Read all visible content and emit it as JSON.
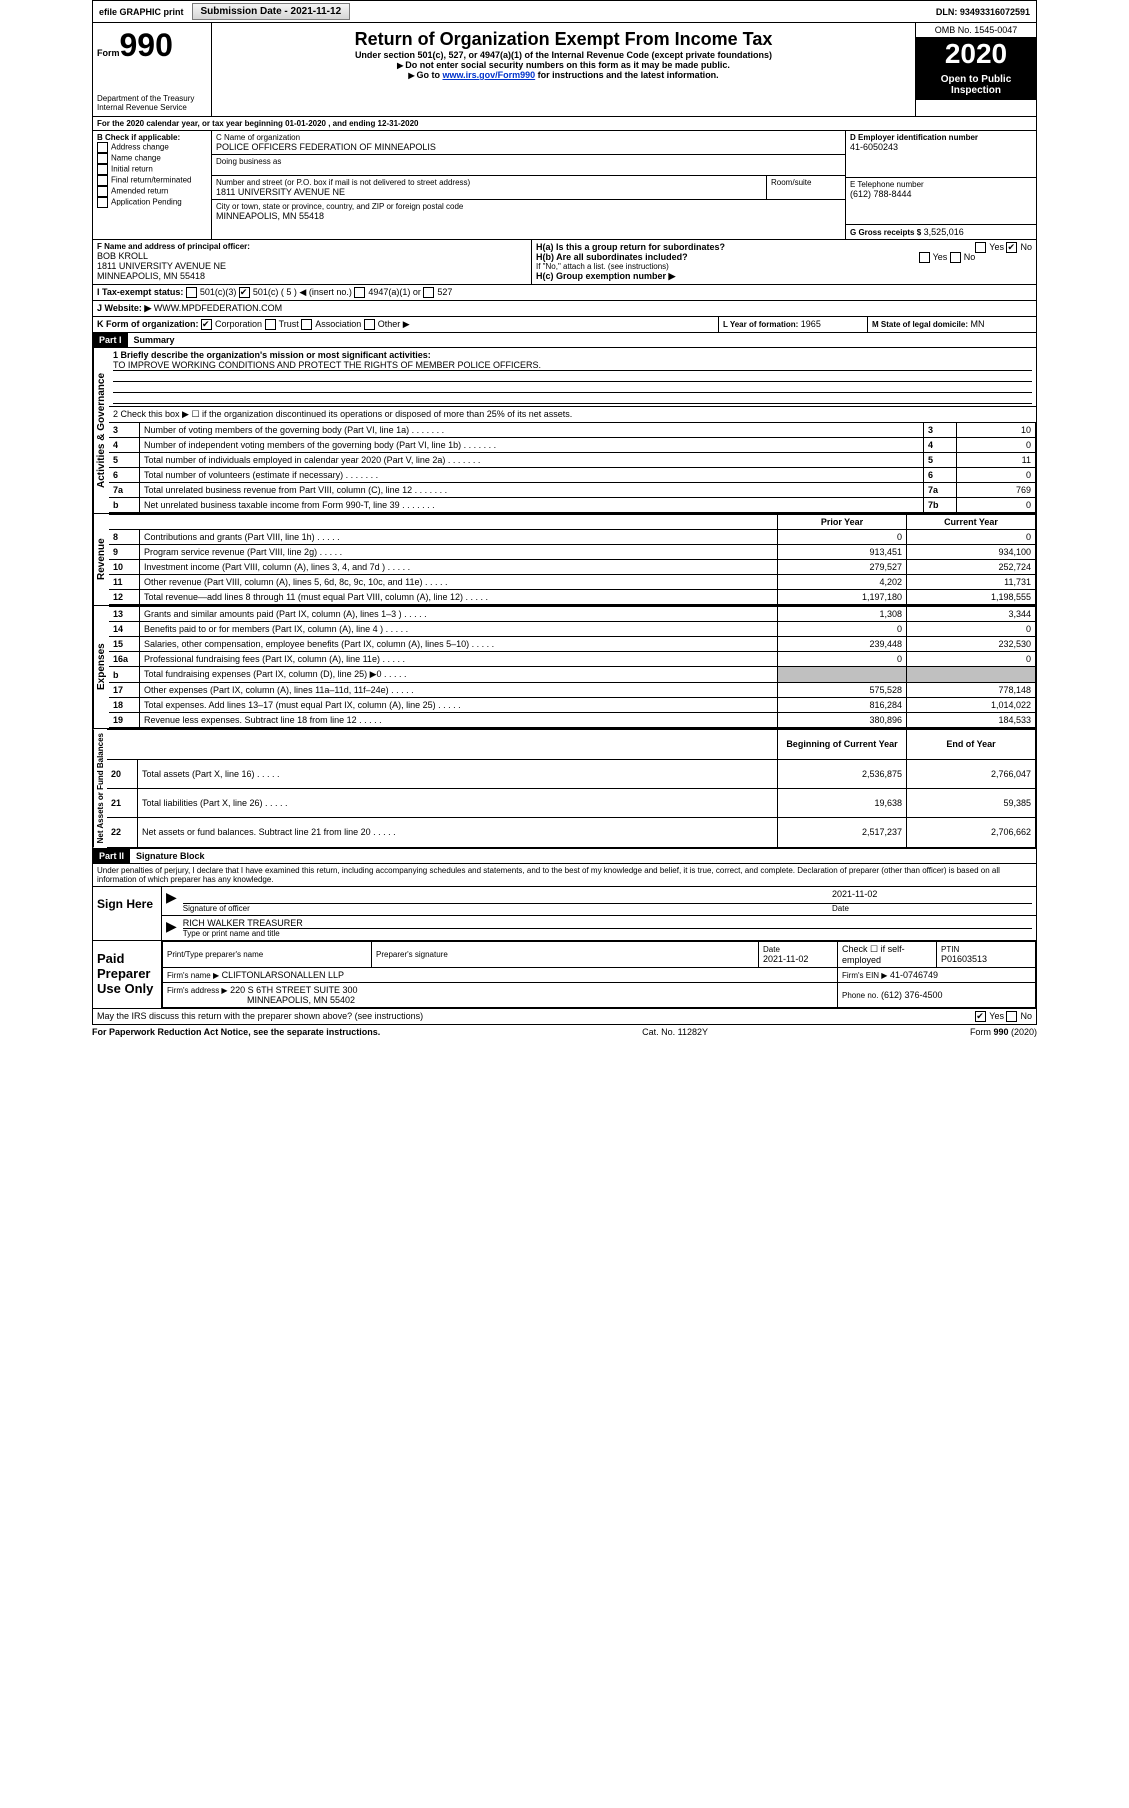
{
  "topbar": {
    "efile": "efile GRAPHIC print",
    "submission_label": "Submission Date - 2021-11-12",
    "dln": "DLN: 93493316072591"
  },
  "header": {
    "form_word": "Form",
    "form_no": "990",
    "dept1": "Department of the Treasury",
    "dept2": "Internal Revenue Service",
    "title": "Return of Organization Exempt From Income Tax",
    "sub1": "Under section 501(c), 527, or 4947(a)(1) of the Internal Revenue Code (except private foundations)",
    "sub2": "Do not enter social security numbers on this form as it may be made public.",
    "sub3_prefix": "Go to ",
    "sub3_link": "www.irs.gov/Form990",
    "sub3_suffix": " for instructions and the latest information.",
    "omb": "OMB No. 1545-0047",
    "year": "2020",
    "open": "Open to Public Inspection"
  },
  "line_a": "For the 2020 calendar year, or tax year beginning 01-01-2020    , and ending 12-31-2020",
  "box_b": {
    "title": "B Check if applicable:",
    "opts": [
      "Address change",
      "Name change",
      "Initial return",
      "Final return/terminated",
      "Amended return",
      "Application Pending"
    ]
  },
  "box_c": {
    "label_name": "C Name of organization",
    "name": "POLICE OFFICERS FEDERATION OF MINNEAPOLIS",
    "dba_label": "Doing business as",
    "addr_label": "Number and street (or P.O. box if mail is not delivered to street address)",
    "room_label": "Room/suite",
    "addr": "1811 UNIVERSITY AVENUE NE",
    "city_label": "City or town, state or province, country, and ZIP or foreign postal code",
    "city": "MINNEAPOLIS, MN  55418"
  },
  "box_d": {
    "label": "D Employer identification number",
    "val": "41-6050243"
  },
  "box_e": {
    "label": "E Telephone number",
    "val": "(612) 788-8444"
  },
  "box_g": {
    "label": "G Gross receipts $",
    "val": "3,525,016"
  },
  "box_f": {
    "label": "F  Name and address of principal officer:",
    "name": "BOB KROLL",
    "addr1": "1811 UNIVERSITY AVENUE NE",
    "addr2": "MINNEAPOLIS, MN  55418"
  },
  "box_h": {
    "ha": "H(a)  Is this a group return for subordinates?",
    "hb": "H(b)  Are all subordinates included?",
    "hnote": "If \"No,\" attach a list. (see instructions)",
    "hc": "H(c)  Group exemption number ▶",
    "yes": "Yes",
    "no": "No"
  },
  "box_i": {
    "label": "I   Tax-exempt status:",
    "o1": "501(c)(3)",
    "o2": "501(c) ( 5 ) ◀ (insert no.)",
    "o3": "4947(a)(1) or",
    "o4": "527"
  },
  "box_j": {
    "label": "J    Website: ▶",
    "val": "WWW.MPDFEDERATION.COM"
  },
  "box_k": {
    "label": "K Form of organization:",
    "o1": "Corporation",
    "o2": "Trust",
    "o3": "Association",
    "o4": "Other ▶"
  },
  "box_l": {
    "label": "L Year of formation:",
    "val": "1965"
  },
  "box_m": {
    "label": "M State of legal domicile:",
    "val": "MN"
  },
  "part1": {
    "hdr": "Part I",
    "title": "Summary"
  },
  "summary": {
    "l1_label": "1   Briefly describe the organization's mission or most significant activities:",
    "l1_val": "TO IMPROVE WORKING CONDITIONS AND PROTECT THE RIGHTS OF MEMBER POLICE OFFICERS.",
    "l2": "2    Check this box ▶ ☐  if the organization discontinued its operations or disposed of more than 25% of its net assets.",
    "rows_gov": [
      {
        "n": "3",
        "t": "Number of voting members of the governing body (Part VI, line 1a)",
        "b": "3",
        "v": "10"
      },
      {
        "n": "4",
        "t": "Number of independent voting members of the governing body (Part VI, line 1b)",
        "b": "4",
        "v": "0"
      },
      {
        "n": "5",
        "t": "Total number of individuals employed in calendar year 2020 (Part V, line 2a)",
        "b": "5",
        "v": "11"
      },
      {
        "n": "6",
        "t": "Total number of volunteers (estimate if necessary)",
        "b": "6",
        "v": "0"
      },
      {
        "n": "7a",
        "t": "Total unrelated business revenue from Part VIII, column (C), line 12",
        "b": "7a",
        "v": "769"
      },
      {
        "n": "b",
        "t": "Net unrelated business taxable income from Form 990-T, line 39",
        "b": "7b",
        "v": "0"
      }
    ],
    "col_prior": "Prior Year",
    "col_current": "Current Year",
    "rev": [
      {
        "n": "8",
        "t": "Contributions and grants (Part VIII, line 1h)",
        "p": "0",
        "c": "0"
      },
      {
        "n": "9",
        "t": "Program service revenue (Part VIII, line 2g)",
        "p": "913,451",
        "c": "934,100"
      },
      {
        "n": "10",
        "t": "Investment income (Part VIII, column (A), lines 3, 4, and 7d )",
        "p": "279,527",
        "c": "252,724"
      },
      {
        "n": "11",
        "t": "Other revenue (Part VIII, column (A), lines 5, 6d, 8c, 9c, 10c, and 11e)",
        "p": "4,202",
        "c": "11,731"
      },
      {
        "n": "12",
        "t": "Total revenue—add lines 8 through 11 (must equal Part VIII, column (A), line 12)",
        "p": "1,197,180",
        "c": "1,198,555"
      }
    ],
    "exp": [
      {
        "n": "13",
        "t": "Grants and similar amounts paid (Part IX, column (A), lines 1–3 )",
        "p": "1,308",
        "c": "3,344"
      },
      {
        "n": "14",
        "t": "Benefits paid to or for members (Part IX, column (A), line 4 )",
        "p": "0",
        "c": "0"
      },
      {
        "n": "15",
        "t": "Salaries, other compensation, employee benefits (Part IX, column (A), lines 5–10)",
        "p": "239,448",
        "c": "232,530"
      },
      {
        "n": "16a",
        "t": "Professional fundraising fees (Part IX, column (A), line 11e)",
        "p": "0",
        "c": "0"
      },
      {
        "n": "b",
        "t": "Total fundraising expenses (Part IX, column (D), line 25) ▶0",
        "p": "",
        "c": "",
        "grey": true
      },
      {
        "n": "17",
        "t": "Other expenses (Part IX, column (A), lines 11a–11d, 11f–24e)",
        "p": "575,528",
        "c": "778,148"
      },
      {
        "n": "18",
        "t": "Total expenses. Add lines 13–17 (must equal Part IX, column (A), line 25)",
        "p": "816,284",
        "c": "1,014,022"
      },
      {
        "n": "19",
        "t": "Revenue less expenses. Subtract line 18 from line 12",
        "p": "380,896",
        "c": "184,533"
      }
    ],
    "col_begin": "Beginning of Current Year",
    "col_end": "End of Year",
    "net": [
      {
        "n": "20",
        "t": "Total assets (Part X, line 16)",
        "p": "2,536,875",
        "c": "2,766,047"
      },
      {
        "n": "21",
        "t": "Total liabilities (Part X, line 26)",
        "p": "19,638",
        "c": "59,385"
      },
      {
        "n": "22",
        "t": "Net assets or fund balances. Subtract line 21 from line 20",
        "p": "2,517,237",
        "c": "2,706,662"
      }
    ],
    "vlabels": {
      "gov": "Activities & Governance",
      "rev": "Revenue",
      "exp": "Expenses",
      "net": "Net Assets or Fund Balances"
    }
  },
  "part2": {
    "hdr": "Part II",
    "title": "Signature Block",
    "perjury": "Under penalties of perjury, I declare that I have examined this return, including accompanying schedules and statements, and to the best of my knowledge and belief, it is true, correct, and complete. Declaration of preparer (other than officer) is based on all information of which preparer has any knowledge."
  },
  "sign": {
    "here": "Sign Here",
    "sig_officer": "Signature of officer",
    "date_label": "Date",
    "date": "2021-11-02",
    "name": "RICH WALKER  TREASURER",
    "typed": "Type or print name and title"
  },
  "preparer": {
    "title": "Paid Preparer Use Only",
    "h1": "Print/Type preparer's name",
    "h2": "Preparer's signature",
    "h3": "Date",
    "date": "2021-11-02",
    "h4": "Check ☐ if self-employed",
    "h5": "PTIN",
    "ptin": "P01603513",
    "firm_name_label": "Firm's name      ▶",
    "firm_name": "CLIFTONLARSONALLEN LLP",
    "firm_ein_label": "Firm's EIN ▶",
    "firm_ein": "41-0746749",
    "firm_addr_label": "Firm's address ▶",
    "firm_addr1": "220 S 6TH STREET SUITE 300",
    "firm_addr2": "MINNEAPOLIS, MN  55402",
    "phone_label": "Phone no.",
    "phone": "(612) 376-4500",
    "discuss": "May the IRS discuss this return with the preparer shown above? (see instructions)"
  },
  "footer": {
    "left": "For Paperwork Reduction Act Notice, see the separate instructions.",
    "mid": "Cat. No. 11282Y",
    "right": "Form 990 (2020)"
  }
}
